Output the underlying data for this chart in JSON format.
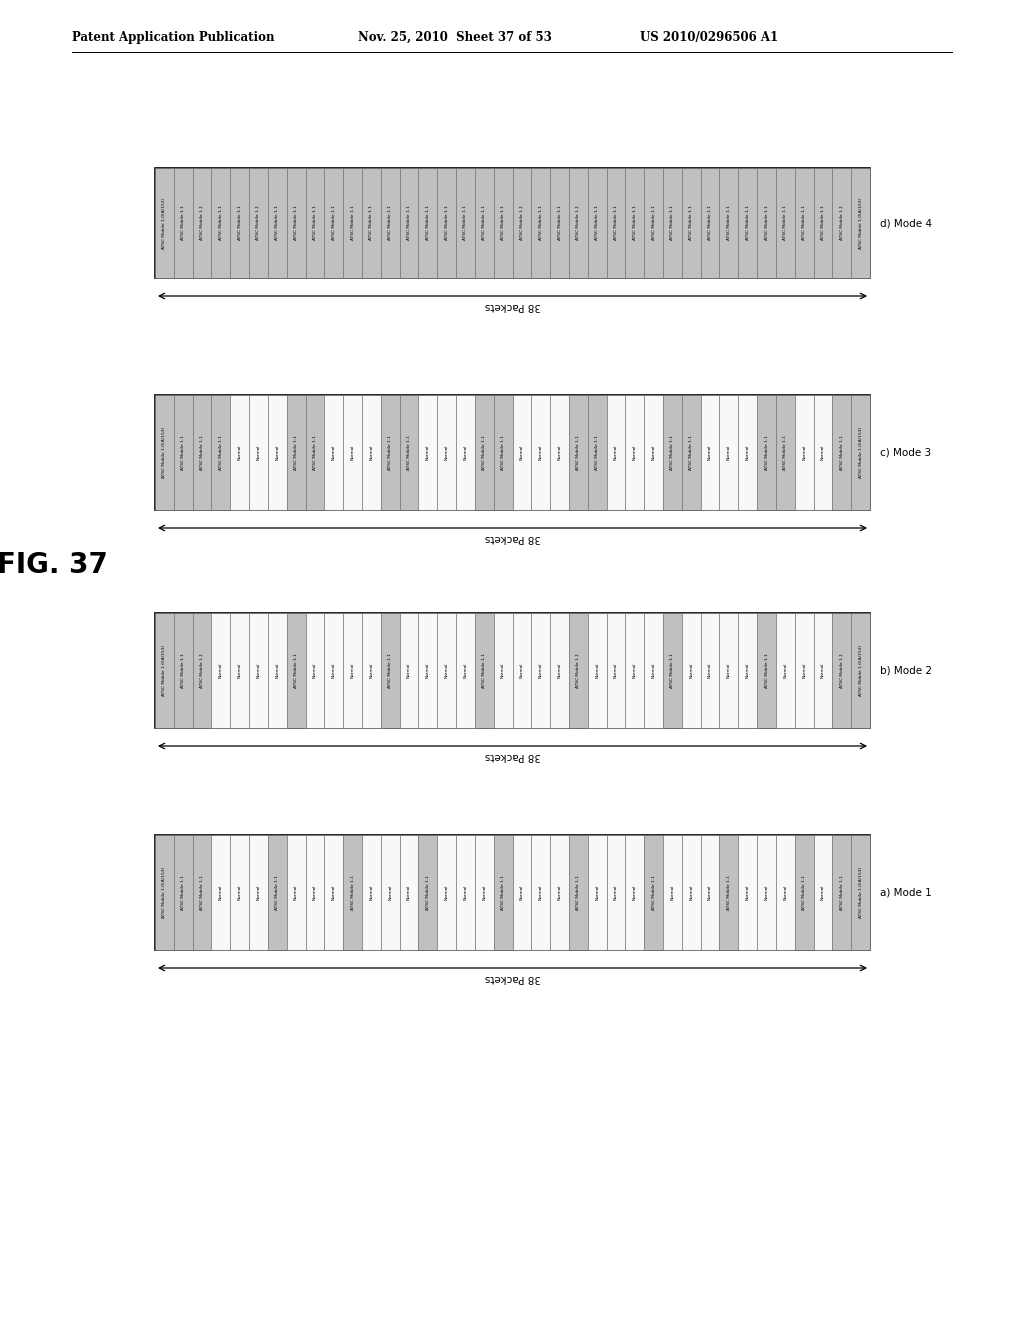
{
  "header_left": "Patent Application Publication",
  "header_mid": "Nov. 25, 2010  Sheet 37 of 53",
  "header_right": "US 2010/0296506 A1",
  "fig_label": "FIG. 37",
  "bg_color": "#ffffff",
  "shaded_color": "#c0c0c0",
  "white_color": "#f8f8f8",
  "packets_label": "38 Packets",
  "diagrams": [
    {
      "mode_label": "a) Mode 1",
      "columns": [
        {
          "text": "ATSC Mobile 1.0(A/153)",
          "shaded": true
        },
        {
          "text": "ATSC Mobile 1.1",
          "shaded": true
        },
        {
          "text": "ATSC Mobile 1.1",
          "shaded": true
        },
        {
          "text": "Normal",
          "shaded": false
        },
        {
          "text": "Normal",
          "shaded": false
        },
        {
          "text": "Normal",
          "shaded": false
        },
        {
          "text": "ATSC Mobile 1.1",
          "shaded": true
        },
        {
          "text": "Normal",
          "shaded": false
        },
        {
          "text": "Normal",
          "shaded": false
        },
        {
          "text": "Normal",
          "shaded": false
        },
        {
          "text": "ATSC Mobile 1.1",
          "shaded": true
        },
        {
          "text": "Normal",
          "shaded": false
        },
        {
          "text": "Normal",
          "shaded": false
        },
        {
          "text": "Normal",
          "shaded": false
        },
        {
          "text": "ATSC Mobile 1.1",
          "shaded": true
        },
        {
          "text": "Normal",
          "shaded": false
        },
        {
          "text": "Normal",
          "shaded": false
        },
        {
          "text": "Normal",
          "shaded": false
        },
        {
          "text": "ATSC Mobile 1.1",
          "shaded": true
        },
        {
          "text": "Normal",
          "shaded": false
        },
        {
          "text": "Normal",
          "shaded": false
        },
        {
          "text": "Normal",
          "shaded": false
        },
        {
          "text": "ATSC Mobile 1.1",
          "shaded": true
        },
        {
          "text": "Normal",
          "shaded": false
        },
        {
          "text": "Normal",
          "shaded": false
        },
        {
          "text": "Normal",
          "shaded": false
        },
        {
          "text": "ATSC Mobile 1.1",
          "shaded": true
        },
        {
          "text": "Normal",
          "shaded": false
        },
        {
          "text": "Normal",
          "shaded": false
        },
        {
          "text": "Normal",
          "shaded": false
        },
        {
          "text": "ATSC Mobile 1.1",
          "shaded": true
        },
        {
          "text": "Normal",
          "shaded": false
        },
        {
          "text": "Normal",
          "shaded": false
        },
        {
          "text": "Normal",
          "shaded": false
        },
        {
          "text": "ATSC Mobile 1.1",
          "shaded": true
        },
        {
          "text": "Normal",
          "shaded": false
        },
        {
          "text": "ATSC Mobile 1.1",
          "shaded": true
        },
        {
          "text": "ATSC Mobile 1.0(A/153)",
          "shaded": true
        }
      ]
    },
    {
      "mode_label": "b) Mode 2",
      "columns": [
        {
          "text": "ATSC Mobile 1.0(A/153)",
          "shaded": true
        },
        {
          "text": "ATSC Mobile 1.1",
          "shaded": true
        },
        {
          "text": "ATSC Mobile 1.1",
          "shaded": true
        },
        {
          "text": "Normal",
          "shaded": false
        },
        {
          "text": "Normal",
          "shaded": false
        },
        {
          "text": "Normal",
          "shaded": false
        },
        {
          "text": "Normal",
          "shaded": false
        },
        {
          "text": "ATSC Mobile 1.1",
          "shaded": true
        },
        {
          "text": "Normal",
          "shaded": false
        },
        {
          "text": "Normal",
          "shaded": false
        },
        {
          "text": "Normal",
          "shaded": false
        },
        {
          "text": "Normal",
          "shaded": false
        },
        {
          "text": "ATSC Mobile 1.1",
          "shaded": true
        },
        {
          "text": "Normal",
          "shaded": false
        },
        {
          "text": "Normal",
          "shaded": false
        },
        {
          "text": "Normal",
          "shaded": false
        },
        {
          "text": "Normal",
          "shaded": false
        },
        {
          "text": "ATSC Mobile 1.1",
          "shaded": true
        },
        {
          "text": "Normal",
          "shaded": false
        },
        {
          "text": "Normal",
          "shaded": false
        },
        {
          "text": "Normal",
          "shaded": false
        },
        {
          "text": "Normal",
          "shaded": false
        },
        {
          "text": "ATSC Mobile 1.1",
          "shaded": true
        },
        {
          "text": "Normal",
          "shaded": false
        },
        {
          "text": "Normal",
          "shaded": false
        },
        {
          "text": "Normal",
          "shaded": false
        },
        {
          "text": "Normal",
          "shaded": false
        },
        {
          "text": "ATSC Mobile 1.1",
          "shaded": true
        },
        {
          "text": "Normal",
          "shaded": false
        },
        {
          "text": "Normal",
          "shaded": false
        },
        {
          "text": "Normal",
          "shaded": false
        },
        {
          "text": "Normal",
          "shaded": false
        },
        {
          "text": "ATSC Mobile 1.1",
          "shaded": true
        },
        {
          "text": "Normal",
          "shaded": false
        },
        {
          "text": "Normal",
          "shaded": false
        },
        {
          "text": "Normal",
          "shaded": false
        },
        {
          "text": "ATSC Mobile 1.1",
          "shaded": true
        },
        {
          "text": "ATSC Mobile 1.0(A/153)",
          "shaded": true
        }
      ]
    },
    {
      "mode_label": "c) Mode 3",
      "columns": [
        {
          "text": "ATSC Mobile 1.0(A/153)",
          "shaded": true
        },
        {
          "text": "ATSC Mobile 1.1",
          "shaded": true
        },
        {
          "text": "ATSC Mobile 1.1",
          "shaded": true
        },
        {
          "text": "ATSC Mobile 1.1",
          "shaded": true
        },
        {
          "text": "Normal",
          "shaded": false
        },
        {
          "text": "Normal",
          "shaded": false
        },
        {
          "text": "Normal",
          "shaded": false
        },
        {
          "text": "ATSC Mobile 1.1",
          "shaded": true
        },
        {
          "text": "ATSC Mobile 1.1",
          "shaded": true
        },
        {
          "text": "Normal",
          "shaded": false
        },
        {
          "text": "Normal",
          "shaded": false
        },
        {
          "text": "Normal",
          "shaded": false
        },
        {
          "text": "ATSC Mobile 1.1",
          "shaded": true
        },
        {
          "text": "ATSC Mobile 1.1",
          "shaded": true
        },
        {
          "text": "Normal",
          "shaded": false
        },
        {
          "text": "Normal",
          "shaded": false
        },
        {
          "text": "Normal",
          "shaded": false
        },
        {
          "text": "ATSC Mobile 1.1",
          "shaded": true
        },
        {
          "text": "ATSC Mobile 1.1",
          "shaded": true
        },
        {
          "text": "Normal",
          "shaded": false
        },
        {
          "text": "Normal",
          "shaded": false
        },
        {
          "text": "Normal",
          "shaded": false
        },
        {
          "text": "ATSC Mobile 1.1",
          "shaded": true
        },
        {
          "text": "ATSC Mobile 1.1",
          "shaded": true
        },
        {
          "text": "Normal",
          "shaded": false
        },
        {
          "text": "Normal",
          "shaded": false
        },
        {
          "text": "Normal",
          "shaded": false
        },
        {
          "text": "ATSC Mobile 1.1",
          "shaded": true
        },
        {
          "text": "ATSC Mobile 1.1",
          "shaded": true
        },
        {
          "text": "Normal",
          "shaded": false
        },
        {
          "text": "Normal",
          "shaded": false
        },
        {
          "text": "Normal",
          "shaded": false
        },
        {
          "text": "ATSC Mobile 1.1",
          "shaded": true
        },
        {
          "text": "ATSC Mobile 1.1",
          "shaded": true
        },
        {
          "text": "Normal",
          "shaded": false
        },
        {
          "text": "Normal",
          "shaded": false
        },
        {
          "text": "ATSC Mobile 1.1",
          "shaded": true
        },
        {
          "text": "ATSC Mobile 1.0(A/153)",
          "shaded": true
        }
      ]
    },
    {
      "mode_label": "d) Mode 4",
      "columns": [
        {
          "text": "ATSC Mobile 1.0(A/153)",
          "shaded": true
        },
        {
          "text": "ATSC Mobile 1.1",
          "shaded": true
        },
        {
          "text": "ATSC Mobile 1.1",
          "shaded": true
        },
        {
          "text": "ATSC Mobile 1.1",
          "shaded": true
        },
        {
          "text": "ATSC Mobile 1.1",
          "shaded": true
        },
        {
          "text": "ATSC Mobile 1.1",
          "shaded": true
        },
        {
          "text": "ATSC Mobile 1.1",
          "shaded": true
        },
        {
          "text": "ATSC Mobile 1.1",
          "shaded": true
        },
        {
          "text": "ATSC Mobile 1.1",
          "shaded": true
        },
        {
          "text": "ATSC Mobile 1.1",
          "shaded": true
        },
        {
          "text": "ATSC Mobile 1.1",
          "shaded": true
        },
        {
          "text": "ATSC Mobile 1.1",
          "shaded": true
        },
        {
          "text": "ATSC Mobile 1.1",
          "shaded": true
        },
        {
          "text": "ATSC Mobile 1.1",
          "shaded": true
        },
        {
          "text": "ATSC Mobile 1.1",
          "shaded": true
        },
        {
          "text": "ATSC Mobile 1.1",
          "shaded": true
        },
        {
          "text": "ATSC Mobile 1.1",
          "shaded": true
        },
        {
          "text": "ATSC Mobile 1.1",
          "shaded": true
        },
        {
          "text": "ATSC Mobile 1.1",
          "shaded": true
        },
        {
          "text": "ATSC Mobile 1.1",
          "shaded": true
        },
        {
          "text": "ATSC Mobile 1.1",
          "shaded": true
        },
        {
          "text": "ATSC Mobile 1.1",
          "shaded": true
        },
        {
          "text": "ATSC Mobile 1.1",
          "shaded": true
        },
        {
          "text": "ATSC Mobile 1.1",
          "shaded": true
        },
        {
          "text": "ATSC Mobile 1.1",
          "shaded": true
        },
        {
          "text": "ATSC Mobile 1.1",
          "shaded": true
        },
        {
          "text": "ATSC Mobile 1.1",
          "shaded": true
        },
        {
          "text": "ATSC Mobile 1.1",
          "shaded": true
        },
        {
          "text": "ATSC Mobile 1.1",
          "shaded": true
        },
        {
          "text": "ATSC Mobile 1.1",
          "shaded": true
        },
        {
          "text": "ATSC Mobile 1.1",
          "shaded": true
        },
        {
          "text": "ATSC Mobile 1.1",
          "shaded": true
        },
        {
          "text": "ATSC Mobile 1.1",
          "shaded": true
        },
        {
          "text": "ATSC Mobile 1.1",
          "shaded": true
        },
        {
          "text": "ATSC Mobile 1.1",
          "shaded": true
        },
        {
          "text": "ATSC Mobile 1.1",
          "shaded": true
        },
        {
          "text": "ATSC Mobile 1.1",
          "shaded": true
        },
        {
          "text": "ATSC Mobile 1.0(A/153)",
          "shaded": true
        }
      ]
    }
  ]
}
